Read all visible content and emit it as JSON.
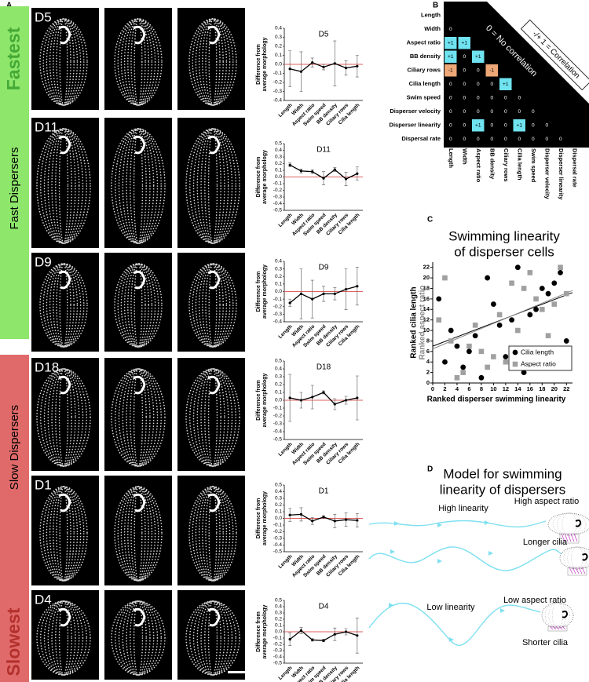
{
  "panel_labels": [
    "A",
    "B",
    "C",
    "D"
  ],
  "groups": [
    {
      "extreme": "Fastest",
      "label": "Fast Dispersers",
      "color": "#8ee66b",
      "accent": "#45a936"
    },
    {
      "extreme": "Slowest",
      "label": "Slow Dispersers",
      "color": "#e06a6a",
      "accent": "#b3302c"
    }
  ],
  "cell_images": [
    "D5",
    "D11",
    "D9",
    "D18",
    "D1",
    "D4"
  ],
  "chart_data": [
    {
      "type": "line",
      "title": "D5",
      "ylabel": [
        "Difference from",
        "average morphology"
      ],
      "categories": [
        "Length",
        "Width",
        "Aspect ratio",
        "Swim speed",
        "BB density",
        "Ciliary rows",
        "Cilia length"
      ],
      "values": [
        -0.05,
        -0.08,
        0.02,
        -0.03,
        0.01,
        -0.04,
        -0.02
      ],
      "errors": [
        0.2,
        0.22,
        0.05,
        0.03,
        0.25,
        0.08,
        0.12
      ],
      "color": "#000000",
      "ylim": [
        -0.4,
        0.4
      ],
      "yticks": [
        0.4,
        0.3,
        0.2,
        0.1,
        {
          "value": 0,
          "label": "0.0"
        },
        -0.1,
        -0.2,
        -0.3,
        -0.4
      ],
      "reference_line": {
        "value": 0,
        "color": "#e06060"
      }
    },
    {
      "type": "line",
      "title": "D11",
      "ylabel": [
        "Difference from",
        "average morphology"
      ],
      "categories": [
        "Length",
        "Width",
        "Aspect ratio",
        "Swim speed",
        "BB density",
        "Ciliary rows",
        "Cilia length"
      ],
      "values": [
        0.18,
        0.09,
        0.08,
        -0.02,
        0.11,
        -0.03,
        0.05
      ],
      "errors": [
        0.03,
        0.03,
        0.03,
        0.1,
        0.03,
        0.1,
        0.1
      ],
      "color": "#000000",
      "ylim": [
        -0.5,
        0.5
      ],
      "yticks": [
        0.5,
        0.4,
        0.3,
        0.2,
        0.1,
        {
          "value": 0,
          "label": "0.0"
        },
        -0.1,
        -0.2,
        -0.3,
        -0.4,
        -0.5
      ],
      "reference_line": {
        "value": 0,
        "color": "#e06060"
      }
    },
    {
      "type": "line",
      "title": "D9",
      "ylabel": [
        "Difference from",
        "average morphology"
      ],
      "categories": [
        "Length",
        "Width",
        "Aspect ratio",
        "Swim speed",
        "BB density",
        "Ciliary rows",
        "Cilia length"
      ],
      "values": [
        -0.15,
        -0.03,
        -0.1,
        -0.03,
        -0.03,
        0.03,
        0.07
      ],
      "errors": [
        0.05,
        0.33,
        0.25,
        0.1,
        0.08,
        0.27,
        0.25
      ],
      "color": "#000000",
      "ylim": [
        -0.4,
        0.4
      ],
      "yticks": [
        0.4,
        0.3,
        0.2,
        0.1,
        {
          "value": 0,
          "label": "0.0"
        },
        -0.1,
        -0.2,
        -0.3,
        -0.4
      ],
      "reference_line": {
        "value": 0,
        "color": "#e06060"
      }
    },
    {
      "type": "line",
      "title": "D18",
      "ylabel": [
        "Difference from",
        "average morphology"
      ],
      "categories": [
        "Length",
        "Width",
        "Aspect ratio",
        "Swim speed",
        "BB density",
        "Ciliary rows",
        "Cilia length"
      ],
      "values": [
        0.03,
        0.0,
        0.04,
        0.1,
        -0.05,
        0.0,
        0.03
      ],
      "errors": [
        0.3,
        0.1,
        0.15,
        0.02,
        0.07,
        0.05,
        0.28
      ],
      "color": "#000000",
      "ylim": [
        -0.5,
        0.5
      ],
      "yticks": [
        0.5,
        0.4,
        0.3,
        0.2,
        0.1,
        {
          "value": 0,
          "label": "0.0"
        },
        -0.1,
        -0.2,
        -0.3,
        -0.4,
        -0.5
      ],
      "reference_line": {
        "value": 0,
        "color": "#e06060"
      }
    },
    {
      "type": "line",
      "title": "D1",
      "ylabel": [
        "Difference from",
        "average morphology"
      ],
      "categories": [
        "Length",
        "Width",
        "Aspect ratio",
        "Swim speed",
        "BB density",
        "Ciliary rows",
        "Cilia length"
      ],
      "values": [
        0.05,
        0.06,
        -0.04,
        0.02,
        -0.04,
        -0.02,
        -0.03
      ],
      "errors": [
        0.1,
        0.1,
        0.05,
        0.02,
        0.1,
        0.1,
        0.1
      ],
      "color": "#000000",
      "ylim": [
        -0.5,
        0.5
      ],
      "yticks": [
        0.5,
        0.4,
        0.3,
        0.2,
        0.1,
        {
          "value": 0,
          "label": "0.0"
        },
        -0.1,
        -0.2,
        -0.3,
        -0.4,
        -0.5
      ],
      "reference_line": {
        "value": 0,
        "color": "#e06060"
      }
    },
    {
      "type": "line",
      "title": "D4",
      "ylabel": [
        "Difference from",
        "average morphology"
      ],
      "categories": [
        "Length",
        "Width",
        "Aspect ratio",
        "Swim speed",
        "BB density",
        "Ciliary rows",
        "Cilia length"
      ],
      "values": [
        -0.12,
        0.02,
        -0.13,
        -0.14,
        -0.04,
        0.0,
        -0.06
      ],
      "errors": [
        0.1,
        0.05,
        0.02,
        0.02,
        0.1,
        0.05,
        0.28
      ],
      "color": "#000000",
      "ylim": [
        -0.5,
        0.5
      ],
      "yticks": [
        0.5,
        0.4,
        0.3,
        0.2,
        0.1,
        {
          "value": 0,
          "label": "0.0"
        },
        -0.1,
        -0.2,
        -0.3,
        -0.4,
        -0.5
      ],
      "reference_line": {
        "value": 0,
        "color": "#e06060"
      }
    },
    {
      "type": "heatmap",
      "rows": [
        "Length",
        "Width",
        "Aspect ratio",
        "BB density",
        "Ciliary rows",
        "Cilia length",
        "Swim speed",
        "Disperser velocity",
        "Disperser linearity",
        "Dispersal rate"
      ],
      "columns": [
        "Length",
        "Width",
        "Aspect ratio",
        "BB density",
        "Ciliary rows",
        "Cilia length",
        "Swim speed",
        "Disperser velocity",
        "Disperser linearity",
        "Dispersal rate"
      ],
      "values": [
        [],
        [
          0
        ],
        [
          1,
          1
        ],
        [
          1,
          0,
          1
        ],
        [
          -1,
          0,
          0,
          -1
        ],
        [
          0,
          0,
          0,
          0,
          1
        ],
        [
          0,
          0,
          0,
          0,
          0,
          0
        ],
        [
          0,
          0,
          0,
          0,
          0,
          0,
          0
        ],
        [
          0,
          0,
          1,
          0,
          0,
          1,
          0,
          0
        ],
        [
          0,
          0,
          0,
          0,
          0,
          0,
          0,
          0,
          0
        ]
      ],
      "value_labels": [
        [],
        [
          "0"
        ],
        [
          "+1",
          "+1"
        ],
        [
          "+1",
          "0",
          "+1"
        ],
        [
          "-1",
          "0",
          "0",
          "-1"
        ],
        [
          "0",
          "0",
          "0",
          "0",
          "+1"
        ],
        [
          "0",
          "0",
          "0",
          "0",
          "0",
          "0"
        ],
        [
          "0",
          "0",
          "0",
          "0",
          "0",
          "0",
          "0"
        ],
        [
          "0",
          "0",
          "+1",
          "0",
          "0",
          "+1",
          "0",
          "0"
        ],
        [
          "0",
          "0",
          "0",
          "0",
          "0",
          "0",
          "0",
          "0",
          "0"
        ]
      ],
      "colors": {
        "positive": "#6fe3f0",
        "negative": "#eea878",
        "zero": "#000000"
      },
      "legend": [
        "0 = No correlation",
        "-/+ 1 = Correlation"
      ]
    },
    {
      "type": "scatter",
      "title": [
        "Swimming linearity",
        "of disperser cells"
      ],
      "xlabel": "Ranked disperser swimming linearity",
      "ylabels": [
        {
          "text": "Ranked cilia length",
          "color": "#000000"
        },
        {
          "text": "Ranked aspect ratio",
          "color": "#8a8a8a"
        }
      ],
      "xlim": [
        0,
        23
      ],
      "ylim": [
        0,
        23
      ],
      "xticks": [
        0,
        2,
        4,
        6,
        8,
        10,
        12,
        14,
        16,
        18,
        20,
        22
      ],
      "yticks": [
        0,
        2,
        4,
        6,
        8,
        10,
        12,
        14,
        16,
        18,
        20,
        22
      ],
      "legend": "lower right",
      "series": [
        {
          "name": "Cilia length",
          "color": "#000000",
          "marker": "circle",
          "x": [
            1,
            2,
            3,
            4,
            5,
            6,
            7,
            8,
            9,
            10,
            11,
            12,
            13,
            14,
            15,
            16,
            17,
            18,
            19,
            20,
            21,
            22
          ],
          "values": [
            16,
            4,
            10,
            7,
            3,
            6,
            9,
            1,
            20,
            15,
            11,
            5,
            12,
            22,
            2,
            13,
            14,
            18,
            17,
            19,
            21,
            8
          ]
        },
        {
          "name": "Aspect ratio",
          "color": "#a0a0a0",
          "marker": "square",
          "x": [
            1,
            2,
            3,
            4,
            5,
            6,
            7,
            8,
            9,
            10,
            11,
            12,
            13,
            14,
            15,
            16,
            17,
            18,
            19,
            20,
            21,
            22
          ],
          "values": [
            12,
            20,
            8,
            1,
            2,
            7,
            11,
            6,
            3,
            5,
            13,
            4,
            19,
            10,
            18,
            21,
            16,
            14,
            9,
            15,
            22,
            17
          ]
        }
      ],
      "fits": [
        {
          "color": "#000000",
          "x": [
            0,
            23
          ],
          "values": [
            7,
            17.2
          ]
        },
        {
          "color": "#8a8a8a",
          "x": [
            0,
            23
          ],
          "values": [
            6.5,
            17.6
          ]
        }
      ]
    }
  ],
  "model": {
    "title": [
      "Model for swimming",
      "linearity of dispersers"
    ],
    "path_color": "#7fe0f0",
    "cilia_color": "#c040c0",
    "high_linearity": "High linearity",
    "high_aspect_ratio": "High aspect ratio",
    "longer_cilia": "Longer cilia",
    "low_linearity": "Low linearity",
    "low_aspect_ratio": "Low aspect ratio",
    "shorter_cilia": "Shorter cilia"
  }
}
